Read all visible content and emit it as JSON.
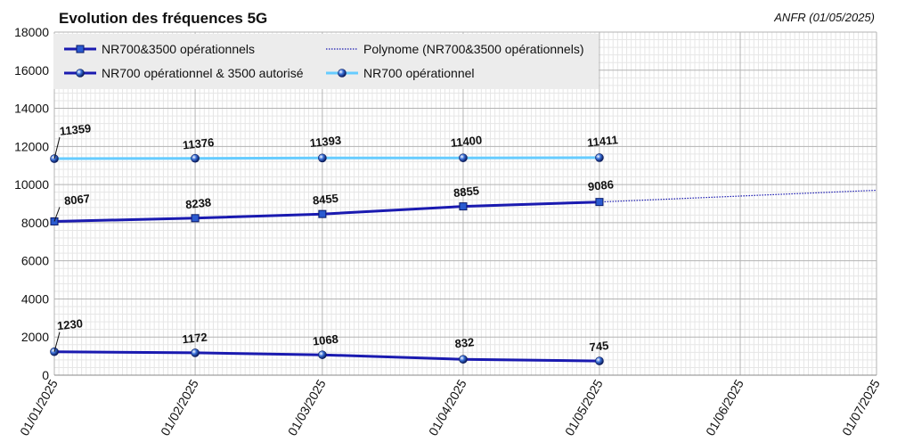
{
  "chart_data": {
    "type": "line",
    "title": "Evolution des fréquences 5G",
    "source_note": "ANFR (01/05/2025)",
    "x_tick_labels": [
      "01/01/2025",
      "01/02/2025",
      "01/03/2025",
      "01/04/2025",
      "01/05/2025",
      "01/06/2025",
      "01/07/2025"
    ],
    "x_data_labels": [
      "01/01/2025",
      "01/02/2025",
      "01/03/2025",
      "01/04/2025",
      "01/05/2025"
    ],
    "x_day_offsets": [
      0,
      31,
      59,
      90,
      120,
      151,
      181
    ],
    "ylim": [
      0,
      18000
    ],
    "y_ticks": [
      0,
      2000,
      4000,
      6000,
      8000,
      10000,
      12000,
      14000,
      16000,
      18000
    ],
    "grid": true,
    "legend_placement": "top-left",
    "series": [
      {
        "name": "NR700&3500 opérationnels",
        "marker": "square",
        "color": "#1a1ab0",
        "values": [
          8067,
          8238,
          8455,
          8855,
          9086
        ],
        "labels": [
          "8067",
          "8238",
          "8455",
          "8855",
          "9086"
        ]
      },
      {
        "name": "NR700 opérationnel & 3500 autorisé",
        "marker": "circle",
        "color": "#1a1ab0",
        "values": [
          1230,
          1172,
          1068,
          832,
          745
        ],
        "labels": [
          "1230",
          "1172",
          "1068",
          "832",
          "745"
        ]
      },
      {
        "name": "NR700 opérationnel",
        "marker": "circle",
        "color": "#66ccff",
        "values": [
          11359,
          11376,
          11393,
          11400,
          11411
        ],
        "labels": [
          "11359",
          "11376",
          "11393",
          "11400",
          "11411"
        ]
      },
      {
        "name": "Polynome (NR700&3500 opérationnels)",
        "style": "dotted",
        "color": "#1a1ab0",
        "trend_end_value": 9700
      }
    ]
  }
}
